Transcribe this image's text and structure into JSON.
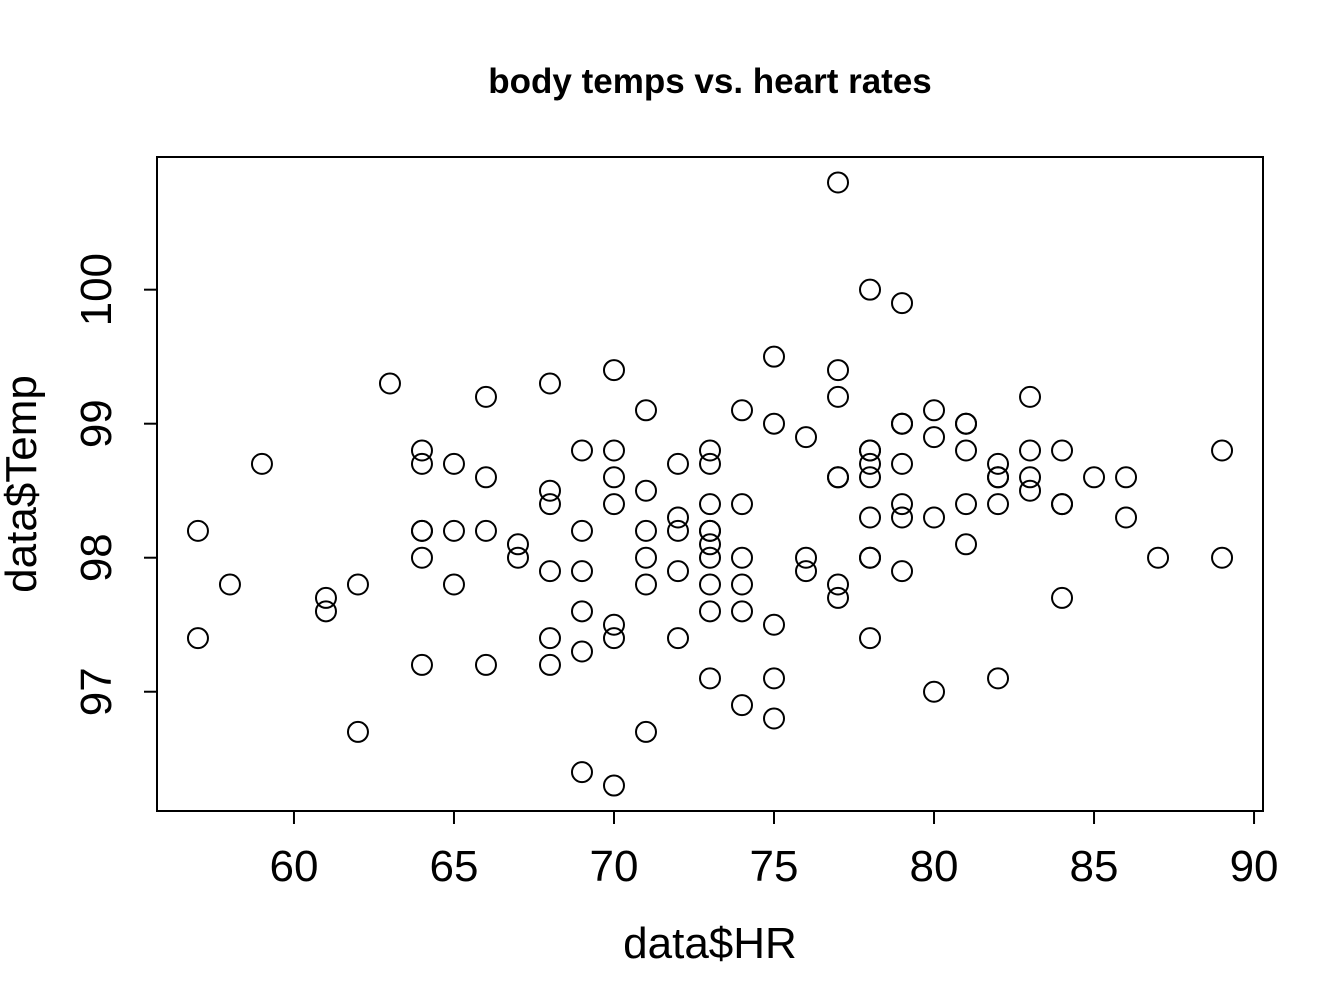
{
  "chart_data": {
    "type": "scatter",
    "title": "body temps vs. heart rates",
    "xlabel": "data$HR",
    "ylabel": "data$Temp",
    "xlim": [
      55.72,
      90.28
    ],
    "ylim": [
      96.11,
      100.99
    ],
    "xticks": [
      60,
      65,
      70,
      75,
      80,
      85,
      90
    ],
    "xtick_labels": [
      "60",
      "65",
      "70",
      "75",
      "80",
      "85",
      "90"
    ],
    "yticks": [
      97,
      98,
      99,
      100
    ],
    "ytick_labels": [
      "97",
      "98",
      "99",
      "100"
    ],
    "grid": false,
    "marker": "open-circle",
    "colors": {
      "marker": "#000000",
      "axis": "#000000",
      "background": "#ffffff"
    },
    "points": [
      [
        57,
        98.2
      ],
      [
        57,
        97.4
      ],
      [
        58,
        97.8
      ],
      [
        59,
        98.7
      ],
      [
        61,
        97.7
      ],
      [
        61,
        97.6
      ],
      [
        62,
        97.8
      ],
      [
        62,
        96.7
      ],
      [
        63,
        99.3
      ],
      [
        64,
        98.8
      ],
      [
        64,
        98.7
      ],
      [
        64,
        98.2
      ],
      [
        64,
        98.2
      ],
      [
        64,
        98.0
      ],
      [
        64,
        97.2
      ],
      [
        65,
        98.7
      ],
      [
        65,
        98.2
      ],
      [
        65,
        97.8
      ],
      [
        66,
        99.2
      ],
      [
        66,
        98.6
      ],
      [
        66,
        98.2
      ],
      [
        66,
        97.2
      ],
      [
        67,
        98.1
      ],
      [
        67,
        98.0
      ],
      [
        68,
        99.3
      ],
      [
        68,
        98.5
      ],
      [
        68,
        98.4
      ],
      [
        68,
        97.9
      ],
      [
        68,
        97.4
      ],
      [
        68,
        97.2
      ],
      [
        69,
        98.8
      ],
      [
        69,
        98.2
      ],
      [
        69,
        97.9
      ],
      [
        69,
        97.6
      ],
      [
        69,
        97.3
      ],
      [
        69,
        96.4
      ],
      [
        70,
        99.4
      ],
      [
        70,
        98.8
      ],
      [
        70,
        98.6
      ],
      [
        70,
        98.4
      ],
      [
        70,
        97.5
      ],
      [
        70,
        97.4
      ],
      [
        70,
        96.3
      ],
      [
        71,
        99.1
      ],
      [
        71,
        98.5
      ],
      [
        71,
        98.2
      ],
      [
        71,
        98.0
      ],
      [
        71,
        97.8
      ],
      [
        71,
        96.7
      ],
      [
        72,
        98.7
      ],
      [
        72,
        98.3
      ],
      [
        72,
        98.2
      ],
      [
        72,
        97.9
      ],
      [
        72,
        97.4
      ],
      [
        73,
        98.8
      ],
      [
        73,
        98.7
      ],
      [
        73,
        98.4
      ],
      [
        73,
        98.2
      ],
      [
        73,
        98.2
      ],
      [
        73,
        98.1
      ],
      [
        73,
        98.0
      ],
      [
        73,
        97.8
      ],
      [
        73,
        97.6
      ],
      [
        73,
        97.1
      ],
      [
        74,
        99.1
      ],
      [
        74,
        98.4
      ],
      [
        74,
        98.0
      ],
      [
        74,
        97.8
      ],
      [
        74,
        97.6
      ],
      [
        74,
        96.9
      ],
      [
        75,
        99.5
      ],
      [
        75,
        99.0
      ],
      [
        75,
        97.5
      ],
      [
        75,
        97.1
      ],
      [
        75,
        96.8
      ],
      [
        76,
        98.9
      ],
      [
        76,
        98.0
      ],
      [
        76,
        97.9
      ],
      [
        77,
        100.8
      ],
      [
        77,
        99.4
      ],
      [
        77,
        99.2
      ],
      [
        77,
        98.6
      ],
      [
        77,
        98.6
      ],
      [
        77,
        97.8
      ],
      [
        77,
        97.7
      ],
      [
        78,
        100.0
      ],
      [
        78,
        98.8
      ],
      [
        78,
        98.8
      ],
      [
        78,
        98.7
      ],
      [
        78,
        98.6
      ],
      [
        78,
        98.3
      ],
      [
        78,
        98.0
      ],
      [
        78,
        98.0
      ],
      [
        78,
        97.4
      ],
      [
        79,
        99.9
      ],
      [
        79,
        99.0
      ],
      [
        79,
        99.0
      ],
      [
        79,
        98.7
      ],
      [
        79,
        98.4
      ],
      [
        79,
        98.3
      ],
      [
        79,
        97.9
      ],
      [
        80,
        99.1
      ],
      [
        80,
        98.9
      ],
      [
        80,
        98.3
      ],
      [
        80,
        97.0
      ],
      [
        81,
        99.0
      ],
      [
        81,
        99.0
      ],
      [
        81,
        98.8
      ],
      [
        81,
        98.4
      ],
      [
        81,
        98.1
      ],
      [
        82,
        98.7
      ],
      [
        82,
        98.6
      ],
      [
        82,
        98.6
      ],
      [
        82,
        98.4
      ],
      [
        82,
        97.1
      ],
      [
        83,
        99.2
      ],
      [
        83,
        98.8
      ],
      [
        83,
        98.6
      ],
      [
        83,
        98.5
      ],
      [
        84,
        98.8
      ],
      [
        84,
        98.4
      ],
      [
        84,
        98.4
      ],
      [
        84,
        97.7
      ],
      [
        85,
        98.6
      ],
      [
        86,
        98.6
      ],
      [
        86,
        98.3
      ],
      [
        87,
        98.0
      ],
      [
        89,
        98.8
      ],
      [
        89,
        98.0
      ]
    ]
  }
}
